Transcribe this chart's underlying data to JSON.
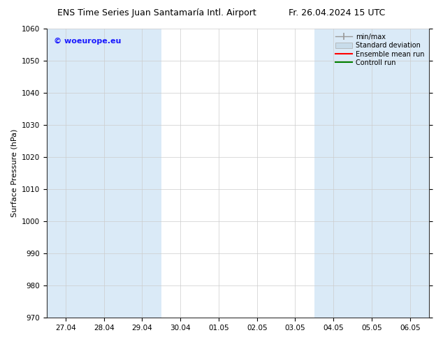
{
  "title_left": "ENS Time Series Juan Santamaría Intl. Airport",
  "title_right": "Fr. 26.04.2024 15 UTC",
  "ylabel": "Surface Pressure (hPa)",
  "ylim": [
    970,
    1060
  ],
  "yticks": [
    970,
    980,
    990,
    1000,
    1010,
    1020,
    1030,
    1040,
    1050,
    1060
  ],
  "xtick_labels": [
    "27.04",
    "28.04",
    "29.04",
    "30.04",
    "01.05",
    "02.05",
    "03.05",
    "04.05",
    "05.05",
    "06.05"
  ],
  "watermark": "© woeurope.eu",
  "watermark_color": "#1a1aff",
  "shaded_band_color": "#daeaf7",
  "legend_entries": [
    {
      "label": "min/max",
      "color": "#aaaaaa",
      "style": "minmax"
    },
    {
      "label": "Standard deviation",
      "color": "#c8dcea",
      "style": "stddev"
    },
    {
      "label": "Ensemble mean run",
      "color": "red",
      "style": "line"
    },
    {
      "label": "Controll run",
      "color": "green",
      "style": "line"
    }
  ],
  "background_color": "#ffffff",
  "plot_bg_color": "#ffffff",
  "title_fontsize": 9,
  "axis_fontsize": 8,
  "tick_fontsize": 7.5
}
